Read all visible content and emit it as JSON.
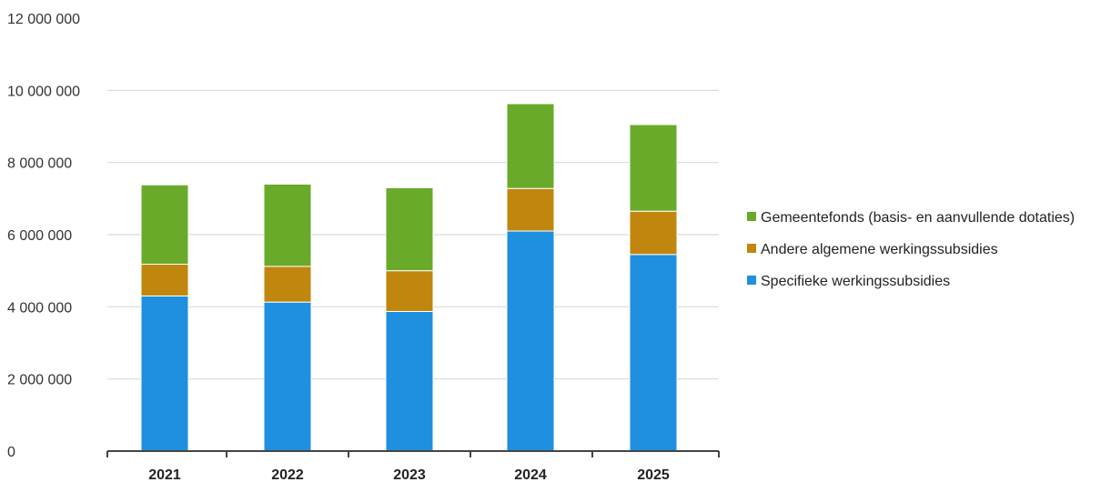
{
  "chart_data": {
    "type": "bar",
    "stacked": true,
    "title": "",
    "xlabel": "",
    "ylabel": "",
    "categories": [
      "2021",
      "2022",
      "2023",
      "2024",
      "2025"
    ],
    "series": [
      {
        "name": "Specifieke werkingssubsidies",
        "color": "#1f8fe0",
        "values": [
          4300000,
          4130000,
          3870000,
          6100000,
          5450000
        ]
      },
      {
        "name": "Andere algemene werkingssubsidies",
        "color": "#c0860e",
        "values": [
          880000,
          990000,
          1130000,
          1180000,
          1200000
        ]
      },
      {
        "name": "Gemeentefonds (basis- en aanvullende dotaties)",
        "color": "#6aaa2a",
        "values": [
          2200000,
          2280000,
          2300000,
          2350000,
          2400000
        ]
      }
    ],
    "ylim": [
      0,
      12000000
    ],
    "yticks": [
      0,
      2000000,
      4000000,
      6000000,
      8000000,
      10000000,
      12000000
    ],
    "ytick_labels": [
      "0",
      "2 000 000",
      "4 000 000",
      "6 000 000",
      "8 000 000",
      "10 000 000",
      "12 000 000"
    ],
    "grid": true,
    "legend_position": "right",
    "legend_order": [
      2,
      1,
      0
    ]
  }
}
